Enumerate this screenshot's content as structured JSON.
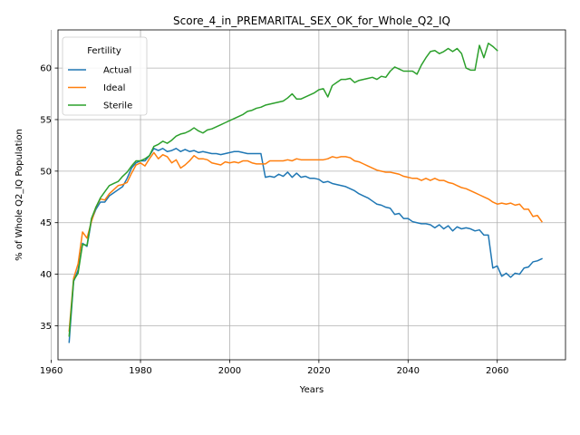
{
  "chart_data": {
    "type": "line",
    "title": "Score_4_in_PREMARITAL_SEX_OK_for_Whole_Q2_IQ",
    "xlabel": "Years",
    "ylabel": "% of Whole Q2_IQ Population",
    "xlim": [
      1961.5,
      2075.3
    ],
    "ylim": [
      31.7,
      63.7
    ],
    "xticks": [
      1960,
      1980,
      2000,
      2020,
      2040,
      2060
    ],
    "yticks": [
      35,
      40,
      45,
      50,
      55,
      60
    ],
    "grid": true,
    "legend": {
      "title": "Fertility",
      "position": "top-left"
    },
    "series": [
      {
        "name": "Actual",
        "color": "#1f77b4",
        "x": [
          1964,
          1965,
          1966,
          1967,
          1968,
          1969,
          1970,
          1971,
          1972,
          1973,
          1974,
          1975,
          1976,
          1977,
          1978,
          1979,
          1980,
          1981,
          1982,
          1983,
          1984,
          1985,
          1986,
          1987,
          1988,
          1989,
          1990,
          1991,
          1992,
          1993,
          1994,
          1995,
          1996,
          1997,
          1998,
          1999,
          2000,
          2001,
          2002,
          2003,
          2004,
          2005,
          2006,
          2007,
          2008,
          2009,
          2010,
          2011,
          2012,
          2013,
          2014,
          2015,
          2016,
          2017,
          2018,
          2019,
          2020,
          2021,
          2022,
          2023,
          2024,
          2025,
          2026,
          2027,
          2028,
          2029,
          2030,
          2031,
          2032,
          2033,
          2034,
          2035,
          2036,
          2037,
          2038,
          2039,
          2040,
          2041,
          2042,
          2043,
          2044,
          2045,
          2046,
          2047,
          2048,
          2049,
          2050,
          2051,
          2052,
          2053,
          2054,
          2055,
          2056,
          2057,
          2058,
          2059,
          2060,
          2061,
          2062,
          2063,
          2064,
          2065,
          2066,
          2067,
          2068,
          2069,
          2070
        ],
        "values": [
          33.4,
          39.3,
          40.4,
          43.0,
          42.7,
          45.2,
          46.3,
          47.0,
          47.0,
          47.6,
          47.9,
          48.2,
          48.5,
          49.3,
          50.3,
          50.8,
          51.0,
          51.0,
          51.5,
          52.2,
          52.0,
          52.2,
          51.9,
          52.0,
          52.2,
          51.9,
          52.1,
          51.9,
          52.0,
          51.8,
          51.9,
          51.8,
          51.7,
          51.7,
          51.6,
          51.7,
          51.8,
          51.9,
          51.9,
          51.8,
          51.7,
          51.7,
          51.7,
          51.7,
          49.4,
          49.5,
          49.4,
          49.7,
          49.5,
          49.9,
          49.4,
          49.8,
          49.4,
          49.5,
          49.3,
          49.3,
          49.2,
          48.9,
          49.0,
          48.8,
          48.7,
          48.6,
          48.5,
          48.3,
          48.1,
          47.8,
          47.6,
          47.4,
          47.1,
          46.8,
          46.7,
          46.5,
          46.4,
          45.8,
          45.9,
          45.4,
          45.4,
          45.1,
          45.0,
          44.9,
          44.9,
          44.8,
          44.5,
          44.8,
          44.4,
          44.7,
          44.2,
          44.6,
          44.4,
          44.5,
          44.4,
          44.2,
          44.3,
          43.8,
          43.8,
          40.6,
          40.8,
          39.8,
          40.1,
          39.7,
          40.1,
          40.0,
          40.6,
          40.7,
          41.2,
          41.3,
          41.5
        ]
      },
      {
        "name": "Ideal",
        "color": "#ff7f0e",
        "x": [
          1964,
          1965,
          1966,
          1967,
          1968,
          1969,
          1970,
          1971,
          1972,
          1973,
          1974,
          1975,
          1976,
          1977,
          1978,
          1979,
          1980,
          1981,
          1982,
          1983,
          1984,
          1985,
          1986,
          1987,
          1988,
          1989,
          1990,
          1991,
          1992,
          1993,
          1994,
          1995,
          1996,
          1997,
          1998,
          1999,
          2000,
          2001,
          2002,
          2003,
          2004,
          2005,
          2006,
          2007,
          2008,
          2009,
          2010,
          2011,
          2012,
          2013,
          2014,
          2015,
          2016,
          2017,
          2018,
          2019,
          2020,
          2021,
          2022,
          2023,
          2024,
          2025,
          2026,
          2027,
          2028,
          2029,
          2030,
          2031,
          2032,
          2033,
          2034,
          2035,
          2036,
          2037,
          2038,
          2039,
          2040,
          2041,
          2042,
          2043,
          2044,
          2045,
          2046,
          2047,
          2048,
          2049,
          2050,
          2051,
          2052,
          2053,
          2054,
          2055,
          2056,
          2057,
          2058,
          2059,
          2060,
          2061,
          2062,
          2063,
          2064,
          2065,
          2066,
          2067,
          2068,
          2069,
          2070
        ],
        "values": [
          34.5,
          39.6,
          41.0,
          44.1,
          43.5,
          45.1,
          46.5,
          47.3,
          47.2,
          47.8,
          48.2,
          48.6,
          48.7,
          48.9,
          49.8,
          50.6,
          50.8,
          50.5,
          51.2,
          51.8,
          51.2,
          51.6,
          51.4,
          50.8,
          51.1,
          50.3,
          50.6,
          51.0,
          51.5,
          51.2,
          51.2,
          51.1,
          50.8,
          50.7,
          50.6,
          50.9,
          50.8,
          50.9,
          50.8,
          51.0,
          51.0,
          50.8,
          50.7,
          50.7,
          50.7,
          51.0,
          51.0,
          51.0,
          51.0,
          51.1,
          51.0,
          51.2,
          51.1,
          51.1,
          51.1,
          51.1,
          51.1,
          51.1,
          51.2,
          51.4,
          51.3,
          51.4,
          51.4,
          51.3,
          51.0,
          50.9,
          50.7,
          50.5,
          50.3,
          50.1,
          50.0,
          49.9,
          49.9,
          49.8,
          49.7,
          49.5,
          49.4,
          49.3,
          49.3,
          49.1,
          49.3,
          49.1,
          49.3,
          49.1,
          49.1,
          48.9,
          48.8,
          48.6,
          48.4,
          48.3,
          48.1,
          47.9,
          47.7,
          47.5,
          47.3,
          47.0,
          46.8,
          46.9,
          46.8,
          46.9,
          46.7,
          46.8,
          46.3,
          46.3,
          45.6,
          45.7,
          45.1
        ]
      },
      {
        "name": "Sterile",
        "color": "#2ca02c",
        "x": [
          1964,
          1965,
          1966,
          1967,
          1968,
          1969,
          1970,
          1971,
          1972,
          1973,
          1974,
          1975,
          1976,
          1977,
          1978,
          1979,
          1980,
          1981,
          1982,
          1983,
          1984,
          1985,
          1986,
          1987,
          1988,
          1989,
          1990,
          1991,
          1992,
          1993,
          1994,
          1995,
          1996,
          1997,
          1998,
          1999,
          2000,
          2001,
          2002,
          2003,
          2004,
          2005,
          2006,
          2007,
          2008,
          2009,
          2010,
          2011,
          2012,
          2013,
          2014,
          2015,
          2016,
          2017,
          2018,
          2019,
          2020,
          2021,
          2022,
          2023,
          2024,
          2025,
          2026,
          2027,
          2028,
          2029,
          2030,
          2031,
          2032,
          2033,
          2034,
          2035,
          2036,
          2037,
          2038,
          2039,
          2040,
          2041,
          2042,
          2043,
          2044,
          2045,
          2046,
          2047,
          2048,
          2049,
          2050,
          2051,
          2052,
          2053,
          2054,
          2055,
          2056,
          2057,
          2058,
          2059,
          2060
        ],
        "values": [
          34.0,
          39.4,
          40.1,
          42.9,
          42.8,
          45.4,
          46.5,
          47.4,
          48.0,
          48.6,
          48.8,
          49.0,
          49.5,
          49.9,
          50.5,
          51.0,
          51.0,
          51.2,
          51.5,
          52.4,
          52.6,
          52.9,
          52.7,
          53.0,
          53.4,
          53.6,
          53.7,
          53.9,
          54.2,
          53.9,
          53.7,
          54.0,
          54.1,
          54.3,
          54.5,
          54.7,
          54.9,
          55.1,
          55.3,
          55.5,
          55.8,
          55.9,
          56.1,
          56.2,
          56.4,
          56.5,
          56.6,
          56.7,
          56.8,
          57.1,
          57.5,
          57.0,
          57.0,
          57.2,
          57.4,
          57.6,
          57.9,
          58.0,
          57.2,
          58.3,
          58.6,
          58.9,
          58.9,
          59.0,
          58.6,
          58.8,
          58.9,
          59.0,
          59.1,
          58.9,
          59.2,
          59.1,
          59.7,
          60.1,
          59.9,
          59.7,
          59.7,
          59.7,
          59.4,
          60.3,
          61.0,
          61.6,
          61.7,
          61.4,
          61.6,
          61.9,
          61.6,
          61.9,
          61.4,
          60.0,
          59.8,
          59.8,
          62.2,
          61.0,
          62.4,
          62.1,
          61.7
        ]
      }
    ]
  }
}
